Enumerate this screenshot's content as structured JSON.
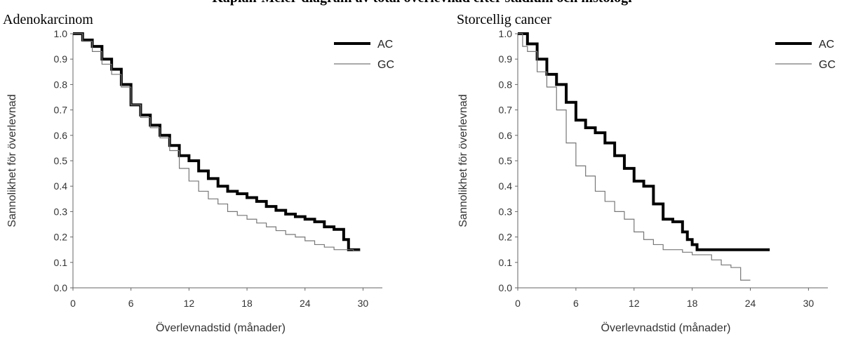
{
  "figure": {
    "title": "Kaplan-Meier-diagram av total överlevnad efter stadium och histologi"
  },
  "chart_data": [
    {
      "type": "line",
      "title": "Adenokarcinom",
      "xlabel": "Överlevnadstid (månader)",
      "ylabel": "Sannolikhet för överlevnad",
      "xlim": [
        0,
        32
      ],
      "ylim": [
        0,
        1.0
      ],
      "xticks": [
        "0",
        "6",
        "12",
        "18",
        "24",
        "30"
      ],
      "yticks": [
        "0.0",
        "0.1",
        "0.2",
        "0.3",
        "0.4",
        "0.5",
        "0.6",
        "0.7",
        "0.8",
        "0.9",
        "1.0"
      ],
      "legend_position": "top-right",
      "grid": false,
      "series": [
        {
          "name": "AC",
          "color": "#000000",
          "points": [
            [
              0,
              1.0
            ],
            [
              1,
              0.975
            ],
            [
              2,
              0.95
            ],
            [
              3,
              0.9
            ],
            [
              4,
              0.86
            ],
            [
              5,
              0.8
            ],
            [
              6,
              0.72
            ],
            [
              7,
              0.68
            ],
            [
              8,
              0.64
            ],
            [
              9,
              0.6
            ],
            [
              10,
              0.56
            ],
            [
              11,
              0.52
            ],
            [
              12,
              0.5
            ],
            [
              13,
              0.46
            ],
            [
              14,
              0.43
            ],
            [
              15,
              0.4
            ],
            [
              16,
              0.38
            ],
            [
              17,
              0.37
            ],
            [
              18,
              0.355
            ],
            [
              19,
              0.34
            ],
            [
              20,
              0.32
            ],
            [
              21,
              0.305
            ],
            [
              22,
              0.29
            ],
            [
              23,
              0.28
            ],
            [
              24,
              0.27
            ],
            [
              25,
              0.26
            ],
            [
              26,
              0.24
            ],
            [
              27,
              0.23
            ],
            [
              28,
              0.19
            ],
            [
              28.5,
              0.15
            ],
            [
              29.7,
              0.15
            ]
          ]
        },
        {
          "name": "GC",
          "color": "#777777",
          "points": [
            [
              0,
              1.0
            ],
            [
              1,
              0.97
            ],
            [
              2,
              0.93
            ],
            [
              3,
              0.88
            ],
            [
              4,
              0.84
            ],
            [
              5,
              0.79
            ],
            [
              6,
              0.72
            ],
            [
              7,
              0.67
            ],
            [
              8,
              0.63
            ],
            [
              9,
              0.59
            ],
            [
              10,
              0.54
            ],
            [
              11,
              0.47
            ],
            [
              12,
              0.42
            ],
            [
              13,
              0.38
            ],
            [
              14,
              0.35
            ],
            [
              15,
              0.33
            ],
            [
              16,
              0.3
            ],
            [
              17,
              0.285
            ],
            [
              18,
              0.27
            ],
            [
              19,
              0.255
            ],
            [
              20,
              0.24
            ],
            [
              21,
              0.225
            ],
            [
              22,
              0.21
            ],
            [
              23,
              0.2
            ],
            [
              24,
              0.185
            ],
            [
              25,
              0.17
            ],
            [
              26,
              0.16
            ],
            [
              27,
              0.15
            ],
            [
              28,
              0.15
            ],
            [
              29,
              0.145
            ],
            [
              29.7,
              0.145
            ]
          ]
        }
      ]
    },
    {
      "type": "line",
      "title": "Storcellig cancer",
      "xlabel": "Överlevnadstid (månader)",
      "ylabel": "Sannolikhet för överlevnad",
      "xlim": [
        0,
        32
      ],
      "ylim": [
        0,
        1.0
      ],
      "xticks": [
        "0",
        "6",
        "12",
        "18",
        "24",
        "30"
      ],
      "yticks": [
        "0.0",
        "0.1",
        "0.2",
        "0.3",
        "0.4",
        "0.5",
        "0.6",
        "0.7",
        "0.8",
        "0.9",
        "1.0"
      ],
      "legend_position": "top-right",
      "grid": false,
      "series": [
        {
          "name": "AC",
          "color": "#000000",
          "points": [
            [
              0,
              1.0
            ],
            [
              0.5,
              1.0
            ],
            [
              1,
              0.96
            ],
            [
              2,
              0.9
            ],
            [
              3,
              0.84
            ],
            [
              4,
              0.8
            ],
            [
              5,
              0.73
            ],
            [
              6,
              0.66
            ],
            [
              7,
              0.63
            ],
            [
              8,
              0.61
            ],
            [
              9,
              0.57
            ],
            [
              10,
              0.52
            ],
            [
              11,
              0.47
            ],
            [
              12,
              0.42
            ],
            [
              13,
              0.4
            ],
            [
              14,
              0.33
            ],
            [
              15,
              0.27
            ],
            [
              16,
              0.26
            ],
            [
              17,
              0.22
            ],
            [
              17.5,
              0.19
            ],
            [
              18,
              0.17
            ],
            [
              18.5,
              0.15
            ],
            [
              19,
              0.15
            ],
            [
              26,
              0.15
            ]
          ]
        },
        {
          "name": "GC",
          "color": "#777777",
          "points": [
            [
              0,
              1.0
            ],
            [
              0.5,
              0.95
            ],
            [
              1,
              0.93
            ],
            [
              2,
              0.85
            ],
            [
              3,
              0.79
            ],
            [
              4,
              0.7
            ],
            [
              5,
              0.57
            ],
            [
              6,
              0.48
            ],
            [
              7,
              0.44
            ],
            [
              8,
              0.38
            ],
            [
              9,
              0.34
            ],
            [
              10,
              0.3
            ],
            [
              11,
              0.27
            ],
            [
              12,
              0.22
            ],
            [
              13,
              0.19
            ],
            [
              14,
              0.17
            ],
            [
              15,
              0.15
            ],
            [
              16,
              0.15
            ],
            [
              17,
              0.14
            ],
            [
              18,
              0.13
            ],
            [
              19,
              0.13
            ],
            [
              20,
              0.11
            ],
            [
              21,
              0.09
            ],
            [
              22,
              0.08
            ],
            [
              23,
              0.03
            ],
            [
              24,
              0.03
            ]
          ]
        }
      ]
    }
  ]
}
